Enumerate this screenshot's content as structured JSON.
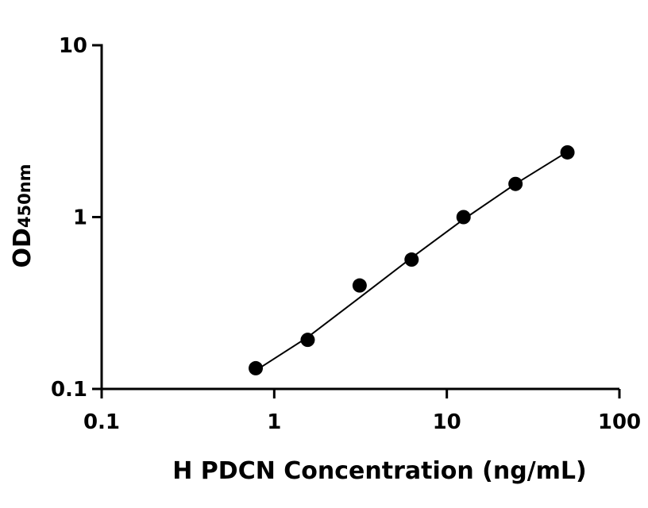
{
  "chart_data": {
    "type": "scatter",
    "x_label": "H PDCN Concentration (ng/mL)",
    "y_label": {
      "main": "OD",
      "sub": "450nm"
    },
    "x": [
      0.78125,
      1.5625,
      3.125,
      6.25,
      12.5,
      25,
      50
    ],
    "series": [
      {
        "color": "#000000",
        "values": [
          0.132,
          0.193,
          0.4,
          0.566,
          1.0,
          1.56,
          2.38
        ]
      }
    ],
    "fit": {
      "color": "#000000",
      "values": [
        0.128,
        0.2,
        0.34,
        0.58,
        0.97,
        1.56,
        2.4
      ]
    },
    "xscale": "log",
    "yscale": "log",
    "xlim": [
      0.1,
      100
    ],
    "ylim": [
      0.1,
      10
    ],
    "xticks": [
      0.1,
      1,
      10,
      100
    ],
    "yticks": [
      0.1,
      1,
      10
    ]
  }
}
